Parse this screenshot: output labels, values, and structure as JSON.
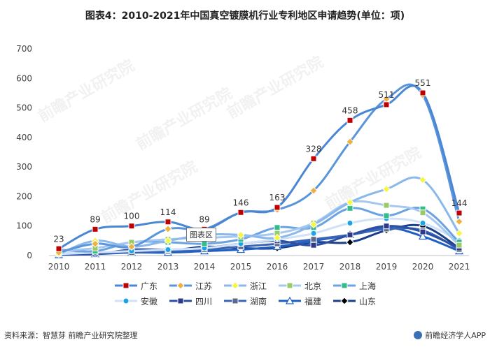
{
  "title": "图表4：2010-2021年中国真空镀膜机行业专利地区申请趋势(单位：项)",
  "source": "资料来源：智慧芽 前瞻产业研究院整理",
  "brand": "前瞻经济学人APP",
  "tooltip": "图表区",
  "watermark": "前瞻产业研究院",
  "chart_data": {
    "type": "line",
    "x": [
      "2010",
      "2011",
      "2012",
      "2013",
      "2014",
      "2015",
      "2016",
      "2017",
      "2018",
      "2019",
      "2020",
      "2021"
    ],
    "y_ticks": [
      0,
      100,
      200,
      300,
      400,
      500,
      600,
      700
    ],
    "ylim": [
      0,
      700
    ],
    "grid": false,
    "legend_position": "bottom",
    "series": [
      {
        "name": "广东",
        "color": "#4a86d4",
        "marker": "square",
        "marker_color": "#c00000",
        "labels": true,
        "values": [
          23,
          89,
          100,
          114,
          89,
          146,
          163,
          328,
          458,
          511,
          551,
          144
        ]
      },
      {
        "name": "江苏",
        "color": "#5a95dc",
        "marker": "diamond",
        "marker_color": "#f0b040",
        "labels": false,
        "values": [
          10,
          40,
          30,
          90,
          90,
          145,
          155,
          220,
          385,
          530,
          543,
          115
        ]
      },
      {
        "name": "浙江",
        "color": "#8ab8ea",
        "marker": "diamond",
        "marker_color": "#f5f542",
        "labels": false,
        "values": [
          5,
          50,
          30,
          50,
          70,
          70,
          60,
          105,
          180,
          225,
          256,
          75
        ]
      },
      {
        "name": "北京",
        "color": "#a6c8ef",
        "marker": "square",
        "marker_color": "#99cc66",
        "labels": false,
        "values": [
          15,
          25,
          45,
          55,
          60,
          65,
          75,
          110,
          180,
          170,
          145,
          35
        ]
      },
      {
        "name": "上海",
        "color": "#6aa2e2",
        "marker": "square",
        "marker_color": "#33bb88",
        "labels": false,
        "values": [
          20,
          15,
          45,
          45,
          40,
          55,
          95,
          95,
          160,
          135,
          158,
          45
        ]
      },
      {
        "name": "安徽",
        "color": "#cfe2f7",
        "marker": "circle",
        "marker_color": "#1aa3e8",
        "labels": false,
        "values": [
          5,
          10,
          15,
          20,
          25,
          40,
          55,
          75,
          110,
          125,
          110,
          50
        ]
      },
      {
        "name": "四川",
        "color": "#2d4fa3",
        "marker": "square",
        "marker_color": "#2d3a8a",
        "labels": false,
        "values": [
          5,
          5,
          20,
          20,
          25,
          40,
          50,
          35,
          70,
          100,
          80,
          25
        ]
      },
      {
        "name": "湖南",
        "color": "#3a64b4",
        "marker": "square",
        "marker_color": "#5a6a8a",
        "labels": false,
        "values": [
          5,
          10,
          10,
          15,
          20,
          30,
          40,
          55,
          70,
          90,
          85,
          20
        ]
      },
      {
        "name": "福建",
        "color": "#1f5fc4",
        "marker": "triangle",
        "marker_color": "#ffffff",
        "labels": false,
        "values": [
          2,
          5,
          10,
          10,
          15,
          20,
          30,
          50,
          70,
          95,
          65,
          15
        ]
      },
      {
        "name": "山东",
        "color": "#1a3f8a",
        "marker": "diamond",
        "marker_color": "#000000",
        "labels": false,
        "values": [
          3,
          5,
          15,
          15,
          30,
          25,
          25,
          45,
          45,
          85,
          100,
          25
        ]
      }
    ]
  }
}
